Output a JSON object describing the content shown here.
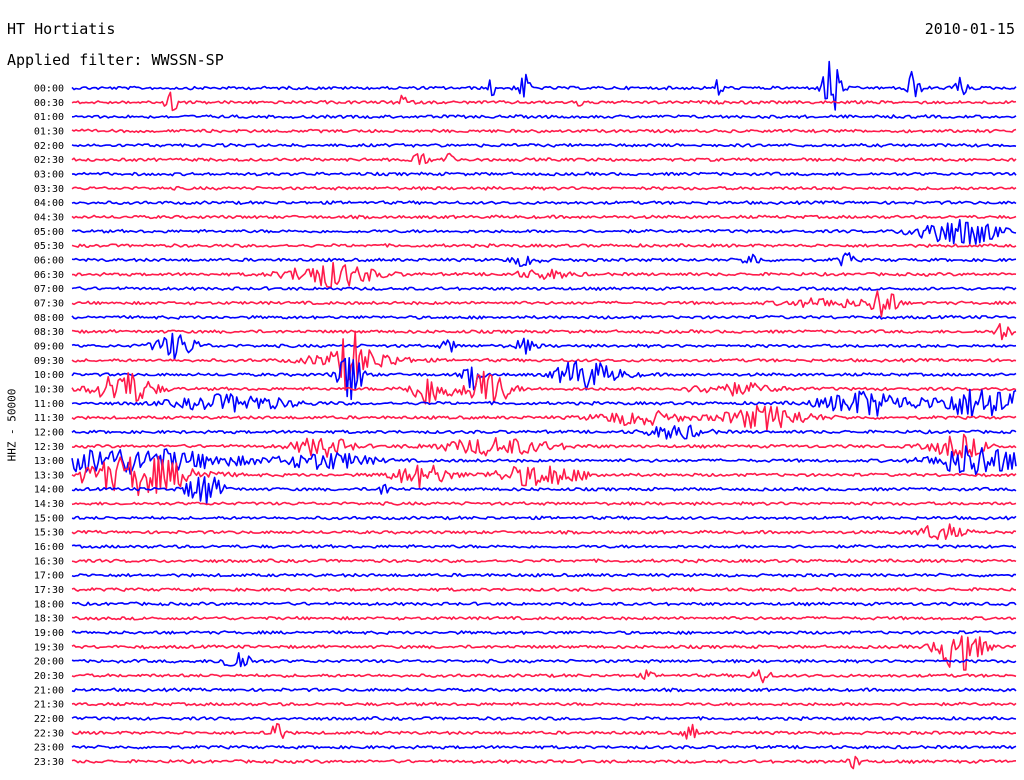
{
  "header": {
    "station": "HT Hortiatis",
    "date": "2010-01-15",
    "filter": "Applied filter: WWSSN-SP",
    "channel_label": "HHZ - 50000"
  },
  "chart_data": {
    "type": "line",
    "title": "HT Hortiatis",
    "subtitle": "Applied filter: WWSSN-SP",
    "ylabel": "HHZ - 50000",
    "series_colors": [
      "#0000ff",
      "#ff1a4a"
    ],
    "rows": [
      "00:00",
      "00:30",
      "01:00",
      "01:30",
      "02:00",
      "02:30",
      "03:00",
      "03:30",
      "04:00",
      "04:30",
      "05:00",
      "05:30",
      "06:00",
      "06:30",
      "07:00",
      "07:30",
      "08:00",
      "08:30",
      "09:00",
      "09:30",
      "10:00",
      "10:30",
      "11:00",
      "11:30",
      "12:00",
      "12:30",
      "13:00",
      "13:30",
      "14:00",
      "14:30",
      "15:00",
      "15:30",
      "16:00",
      "16:30",
      "17:00",
      "17:30",
      "18:00",
      "18:30",
      "19:00",
      "19:30",
      "20:00",
      "20:30",
      "21:00",
      "21:30",
      "22:00",
      "22:30",
      "23:00",
      "23:30"
    ],
    "events": [
      {
        "row": 0,
        "t": 0.445,
        "amp": 0.6,
        "dur": 0.004
      },
      {
        "row": 0,
        "t": 0.48,
        "amp": 0.9,
        "dur": 0.005
      },
      {
        "row": 0,
        "t": 0.685,
        "amp": 0.6,
        "dur": 0.004
      },
      {
        "row": 0,
        "t": 0.805,
        "amp": 2.6,
        "dur": 0.006
      },
      {
        "row": 0,
        "t": 0.89,
        "amp": 1.2,
        "dur": 0.005
      },
      {
        "row": 0,
        "t": 0.94,
        "amp": 0.8,
        "dur": 0.005
      },
      {
        "row": 1,
        "t": 0.105,
        "amp": 0.8,
        "dur": 0.005
      },
      {
        "row": 1,
        "t": 0.35,
        "amp": 0.7,
        "dur": 0.004
      },
      {
        "row": 1,
        "t": 0.54,
        "amp": 0.3,
        "dur": 0.004
      },
      {
        "row": 5,
        "t": 0.37,
        "amp": 0.6,
        "dur": 0.005
      },
      {
        "row": 5,
        "t": 0.4,
        "amp": 0.4,
        "dur": 0.005
      },
      {
        "row": 10,
        "t": 0.92,
        "amp": 0.9,
        "dur": 0.02
      },
      {
        "row": 10,
        "t": 0.96,
        "amp": 0.8,
        "dur": 0.015
      },
      {
        "row": 12,
        "t": 0.48,
        "amp": 0.4,
        "dur": 0.01
      },
      {
        "row": 12,
        "t": 0.72,
        "amp": 0.5,
        "dur": 0.006
      },
      {
        "row": 12,
        "t": 0.82,
        "amp": 0.6,
        "dur": 0.005
      },
      {
        "row": 13,
        "t": 0.275,
        "amp": 0.9,
        "dur": 0.03
      },
      {
        "row": 13,
        "t": 0.5,
        "amp": 0.3,
        "dur": 0.02
      },
      {
        "row": 15,
        "t": 0.86,
        "amp": 1.5,
        "dur": 0.008
      },
      {
        "row": 15,
        "t": 0.8,
        "amp": 0.3,
        "dur": 0.03
      },
      {
        "row": 17,
        "t": 0.985,
        "amp": 0.7,
        "dur": 0.006
      },
      {
        "row": 18,
        "t": 0.11,
        "amp": 0.9,
        "dur": 0.015
      },
      {
        "row": 18,
        "t": 0.4,
        "amp": 0.5,
        "dur": 0.005
      },
      {
        "row": 18,
        "t": 0.48,
        "amp": 0.5,
        "dur": 0.008
      },
      {
        "row": 19,
        "t": 0.295,
        "amp": 2.0,
        "dur": 0.006
      },
      {
        "row": 19,
        "t": 0.3,
        "amp": 0.8,
        "dur": 0.03
      },
      {
        "row": 20,
        "t": 0.295,
        "amp": 2.2,
        "dur": 0.008
      },
      {
        "row": 20,
        "t": 0.425,
        "amp": 1.0,
        "dur": 0.006
      },
      {
        "row": 20,
        "t": 0.535,
        "amp": 0.9,
        "dur": 0.015
      },
      {
        "row": 20,
        "t": 0.56,
        "amp": 0.5,
        "dur": 0.02
      },
      {
        "row": 21,
        "t": 0.055,
        "amp": 1.3,
        "dur": 0.02
      },
      {
        "row": 21,
        "t": 0.38,
        "amp": 1.2,
        "dur": 0.015
      },
      {
        "row": 21,
        "t": 0.44,
        "amp": 1.5,
        "dur": 0.015
      },
      {
        "row": 21,
        "t": 0.7,
        "amp": 0.4,
        "dur": 0.03
      },
      {
        "row": 22,
        "t": 0.17,
        "amp": 0.6,
        "dur": 0.04
      },
      {
        "row": 22,
        "t": 0.84,
        "amp": 0.9,
        "dur": 0.03
      },
      {
        "row": 22,
        "t": 0.975,
        "amp": 1.2,
        "dur": 0.04
      },
      {
        "row": 23,
        "t": 0.6,
        "amp": 0.5,
        "dur": 0.03
      },
      {
        "row": 23,
        "t": 0.735,
        "amp": 0.8,
        "dur": 0.03
      },
      {
        "row": 24,
        "t": 0.64,
        "amp": 0.5,
        "dur": 0.02
      },
      {
        "row": 25,
        "t": 0.265,
        "amp": 0.7,
        "dur": 0.02
      },
      {
        "row": 25,
        "t": 0.45,
        "amp": 0.6,
        "dur": 0.04
      },
      {
        "row": 25,
        "t": 0.94,
        "amp": 0.8,
        "dur": 0.02
      },
      {
        "row": 26,
        "t": 0.05,
        "amp": 0.9,
        "dur": 0.08
      },
      {
        "row": 26,
        "t": 0.27,
        "amp": 0.6,
        "dur": 0.03
      },
      {
        "row": 26,
        "t": 0.96,
        "amp": 1.2,
        "dur": 0.03
      },
      {
        "row": 27,
        "t": 0.07,
        "amp": 1.4,
        "dur": 0.04
      },
      {
        "row": 27,
        "t": 0.37,
        "amp": 0.8,
        "dur": 0.02
      },
      {
        "row": 27,
        "t": 0.495,
        "amp": 0.8,
        "dur": 0.03
      },
      {
        "row": 28,
        "t": 0.14,
        "amp": 1.2,
        "dur": 0.012
      },
      {
        "row": 28,
        "t": 0.33,
        "amp": 0.4,
        "dur": 0.005
      },
      {
        "row": 31,
        "t": 0.92,
        "amp": 0.6,
        "dur": 0.015
      },
      {
        "row": 39,
        "t": 0.94,
        "amp": 1.8,
        "dur": 0.015
      },
      {
        "row": 40,
        "t": 0.175,
        "amp": 0.8,
        "dur": 0.01
      },
      {
        "row": 41,
        "t": 0.73,
        "amp": 0.6,
        "dur": 0.006
      },
      {
        "row": 41,
        "t": 0.61,
        "amp": 0.3,
        "dur": 0.004
      },
      {
        "row": 45,
        "t": 0.215,
        "amp": 0.8,
        "dur": 0.006
      },
      {
        "row": 45,
        "t": 0.655,
        "amp": 0.6,
        "dur": 0.005
      },
      {
        "row": 47,
        "t": 0.83,
        "amp": 0.5,
        "dur": 0.005
      }
    ]
  }
}
